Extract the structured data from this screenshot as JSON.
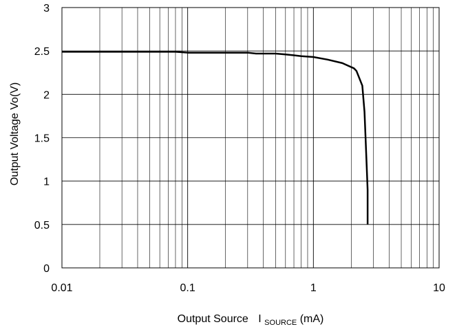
{
  "chart_data": {
    "type": "line",
    "title": "",
    "xlabel": "Output Source",
    "xlabel_symbol": "I",
    "xlabel_subscript": "SOURCE",
    "xlabel_unit": "(mA)",
    "ylabel": "Output Voltage   Vo(V)",
    "x_scale": "log",
    "xlim": [
      0.01,
      10
    ],
    "ylim": [
      0,
      3
    ],
    "x_ticks": [
      0.01,
      0.1,
      1,
      10
    ],
    "x_tick_labels": [
      "0.01",
      "0.1",
      "1",
      "10"
    ],
    "y_ticks": [
      0,
      0.5,
      1,
      1.5,
      2,
      2.5,
      3
    ],
    "y_tick_labels": [
      "0",
      "0.5",
      "1",
      "1.5",
      "2",
      "2.5",
      "3"
    ],
    "grid": true,
    "legend": false,
    "line_color": "#000000",
    "series": [
      {
        "x": [
          0.01,
          0.03,
          0.08,
          0.1,
          0.2,
          0.3,
          0.35,
          0.5,
          0.6,
          0.7,
          0.8,
          1.0,
          1.3,
          1.7,
          2.1,
          2.2,
          2.45,
          2.55,
          2.6,
          2.65,
          2.7,
          2.7
        ],
        "y": [
          2.49,
          2.49,
          2.49,
          2.48,
          2.48,
          2.48,
          2.47,
          2.47,
          2.46,
          2.45,
          2.44,
          2.43,
          2.4,
          2.36,
          2.3,
          2.27,
          2.1,
          1.8,
          1.5,
          1.2,
          0.9,
          0.5
        ]
      }
    ]
  }
}
